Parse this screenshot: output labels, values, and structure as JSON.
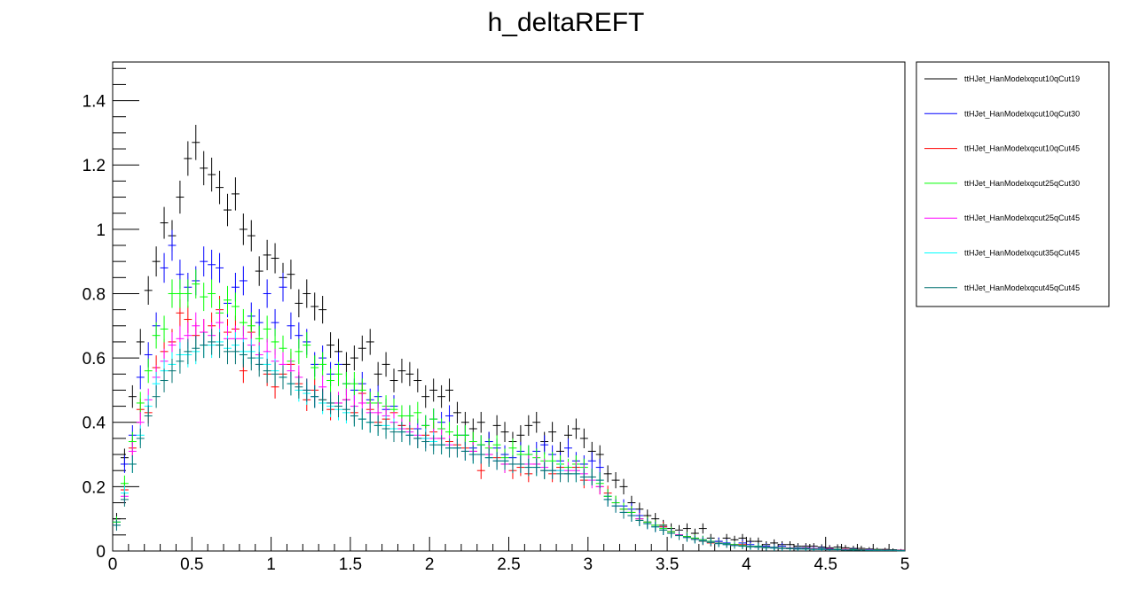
{
  "chart_data": {
    "type": "scatter",
    "title": "h_deltaREFT",
    "xlabel": "",
    "ylabel": "",
    "xlim": [
      0,
      5
    ],
    "ylim": [
      0,
      1.52
    ],
    "x_ticks": [
      0,
      0.5,
      1,
      1.5,
      2,
      2.5,
      3,
      3.5,
      4,
      4.5,
      5
    ],
    "x_tick_labels": [
      "0",
      "0.5",
      "1",
      "1.5",
      "2",
      "2.5",
      "3",
      "3.5",
      "4",
      "4.5",
      "5"
    ],
    "y_ticks": [
      0,
      0.2,
      0.4,
      0.6,
      0.8,
      1,
      1.2,
      1.4
    ],
    "y_tick_labels": [
      "0",
      "0.2",
      "0.4",
      "0.6",
      "0.8",
      "1",
      "1.2",
      "1.4"
    ],
    "bin_width": 0.05,
    "grid": false,
    "legend_position": "right",
    "x": [
      0.025,
      0.075,
      0.125,
      0.175,
      0.225,
      0.275,
      0.325,
      0.375,
      0.425,
      0.475,
      0.525,
      0.575,
      0.625,
      0.675,
      0.725,
      0.775,
      0.825,
      0.875,
      0.925,
      0.975,
      1.025,
      1.075,
      1.125,
      1.175,
      1.225,
      1.275,
      1.325,
      1.375,
      1.425,
      1.475,
      1.525,
      1.575,
      1.625,
      1.675,
      1.725,
      1.775,
      1.825,
      1.875,
      1.925,
      1.975,
      2.025,
      2.075,
      2.125,
      2.175,
      2.225,
      2.275,
      2.325,
      2.375,
      2.425,
      2.475,
      2.525,
      2.575,
      2.625,
      2.675,
      2.725,
      2.775,
      2.825,
      2.875,
      2.925,
      2.975,
      3.025,
      3.075,
      3.125,
      3.175,
      3.225,
      3.275,
      3.325,
      3.375,
      3.425,
      3.475,
      3.525,
      3.575,
      3.625,
      3.675,
      3.725,
      3.775,
      3.825,
      3.875,
      3.925,
      3.975,
      4.025,
      4.075,
      4.125,
      4.175,
      4.225,
      4.275,
      4.325,
      4.375,
      4.425,
      4.475,
      4.525,
      4.575,
      4.625,
      4.675,
      4.725,
      4.775,
      4.825,
      4.875,
      4.925,
      4.975
    ],
    "series": [
      {
        "name": "ttHJet_HanModelxqcut10qCut19",
        "color": "#000000",
        "values": [
          0.1,
          0.29,
          0.48,
          0.65,
          0.81,
          0.9,
          1.02,
          0.98,
          1.1,
          1.22,
          1.27,
          1.19,
          1.17,
          1.13,
          1.06,
          1.11,
          1.0,
          0.98,
          0.87,
          0.92,
          0.91,
          0.85,
          0.86,
          0.77,
          0.8,
          0.76,
          0.75,
          0.64,
          0.62,
          0.58,
          0.6,
          0.63,
          0.65,
          0.55,
          0.58,
          0.53,
          0.56,
          0.55,
          0.53,
          0.48,
          0.5,
          0.48,
          0.5,
          0.43,
          0.4,
          0.38,
          0.4,
          0.34,
          0.39,
          0.37,
          0.34,
          0.36,
          0.39,
          0.4,
          0.34,
          0.37,
          0.31,
          0.36,
          0.38,
          0.35,
          0.31,
          0.3,
          0.24,
          0.22,
          0.2,
          0.15,
          0.13,
          0.11,
          0.1,
          0.08,
          0.07,
          0.065,
          0.07,
          0.055,
          0.07,
          0.04,
          0.03,
          0.04,
          0.035,
          0.04,
          0.03,
          0.03,
          0.02,
          0.025,
          0.02,
          0.02,
          0.015,
          0.015,
          0.015,
          0.012,
          0.01,
          0.012,
          0.01,
          0.008,
          0.008,
          0.006,
          0.005,
          0.005,
          0.004,
          0.003
        ]
      },
      {
        "name": "ttHJet_HanModelxqcut10qCut30",
        "color": "#0000ff",
        "values": [
          0.09,
          0.27,
          0.36,
          0.54,
          0.61,
          0.7,
          0.88,
          0.95,
          0.86,
          0.82,
          0.84,
          0.9,
          0.89,
          0.88,
          0.77,
          0.82,
          0.84,
          0.73,
          0.71,
          0.8,
          0.71,
          0.82,
          0.7,
          0.67,
          0.65,
          0.58,
          0.6,
          0.55,
          0.58,
          0.52,
          0.5,
          0.52,
          0.47,
          0.48,
          0.44,
          0.45,
          0.39,
          0.42,
          0.38,
          0.39,
          0.41,
          0.4,
          0.42,
          0.36,
          0.36,
          0.32,
          0.33,
          0.34,
          0.32,
          0.3,
          0.29,
          0.31,
          0.3,
          0.31,
          0.33,
          0.3,
          0.28,
          0.32,
          0.28,
          0.27,
          0.28,
          0.26,
          0.17,
          0.15,
          0.14,
          0.13,
          0.11,
          0.09,
          0.08,
          0.075,
          0.06,
          0.05,
          0.045,
          0.04,
          0.035,
          0.03,
          0.03,
          0.025,
          0.02,
          0.025,
          0.02,
          0.015,
          0.015,
          0.012,
          0.015,
          0.01,
          0.01,
          0.01,
          0.008,
          0.008,
          0.007,
          0.006,
          0.005,
          0.005,
          0.004,
          0.004,
          0.003,
          0.003,
          0.002,
          0.002
        ]
      },
      {
        "name": "ttHJet_HanModelxqcut10qCut45",
        "color": "#ff0000",
        "values": [
          0.08,
          0.19,
          0.32,
          0.44,
          0.43,
          0.57,
          0.62,
          0.65,
          0.74,
          0.72,
          0.67,
          0.68,
          0.7,
          0.75,
          0.68,
          0.69,
          0.56,
          0.68,
          0.6,
          0.55,
          0.51,
          0.55,
          0.58,
          0.52,
          0.47,
          0.5,
          0.47,
          0.44,
          0.46,
          0.47,
          0.43,
          0.49,
          0.44,
          0.4,
          0.41,
          0.43,
          0.39,
          0.38,
          0.35,
          0.36,
          0.37,
          0.35,
          0.34,
          0.33,
          0.32,
          0.31,
          0.25,
          0.3,
          0.29,
          0.27,
          0.25,
          0.26,
          0.24,
          0.27,
          0.25,
          0.24,
          0.26,
          0.24,
          0.26,
          0.22,
          0.23,
          0.2,
          0.18,
          0.15,
          0.13,
          0.12,
          0.1,
          0.09,
          0.08,
          0.075,
          0.06,
          0.05,
          0.045,
          0.04,
          0.03,
          0.025,
          0.025,
          0.02,
          0.02,
          0.02,
          0.015,
          0.012,
          0.012,
          0.01,
          0.01,
          0.009,
          0.008,
          0.008,
          0.007,
          0.006,
          0.006,
          0.005,
          0.005,
          0.004,
          0.004,
          0.003,
          0.003,
          0.003,
          0.002,
          0.002
        ]
      },
      {
        "name": "ttHJet_HanModelxqcut25qCut30",
        "color": "#00ff00",
        "values": [
          0.09,
          0.21,
          0.34,
          0.46,
          0.56,
          0.67,
          0.69,
          0.8,
          0.8,
          0.8,
          0.83,
          0.79,
          0.8,
          0.74,
          0.78,
          0.76,
          0.71,
          0.7,
          0.66,
          0.69,
          0.65,
          0.63,
          0.59,
          0.62,
          0.64,
          0.57,
          0.58,
          0.53,
          0.55,
          0.52,
          0.52,
          0.5,
          0.46,
          0.46,
          0.45,
          0.44,
          0.42,
          0.42,
          0.43,
          0.39,
          0.41,
          0.38,
          0.37,
          0.36,
          0.36,
          0.34,
          0.33,
          0.32,
          0.33,
          0.29,
          0.32,
          0.3,
          0.3,
          0.29,
          0.28,
          0.28,
          0.27,
          0.26,
          0.27,
          0.26,
          0.23,
          0.21,
          0.17,
          0.15,
          0.13,
          0.12,
          0.1,
          0.09,
          0.08,
          0.07,
          0.06,
          0.05,
          0.045,
          0.04,
          0.035,
          0.03,
          0.025,
          0.022,
          0.02,
          0.018,
          0.015,
          0.014,
          0.012,
          0.011,
          0.01,
          0.009,
          0.008,
          0.007,
          0.006,
          0.006,
          0.005,
          0.005,
          0.004,
          0.004,
          0.003,
          0.003,
          0.003,
          0.002,
          0.002,
          0.002
        ]
      },
      {
        "name": "ttHJet_HanModelxqcut25qCut45",
        "color": "#ff00ff",
        "values": [
          0.08,
          0.17,
          0.31,
          0.4,
          0.47,
          0.54,
          0.59,
          0.64,
          0.66,
          0.67,
          0.7,
          0.68,
          0.67,
          0.71,
          0.66,
          0.66,
          0.66,
          0.64,
          0.61,
          0.62,
          0.59,
          0.58,
          0.56,
          0.54,
          0.5,
          0.48,
          0.51,
          0.46,
          0.46,
          0.47,
          0.45,
          0.46,
          0.43,
          0.43,
          0.42,
          0.4,
          0.38,
          0.37,
          0.36,
          0.35,
          0.35,
          0.35,
          0.33,
          0.32,
          0.31,
          0.31,
          0.3,
          0.3,
          0.28,
          0.27,
          0.27,
          0.27,
          0.27,
          0.27,
          0.26,
          0.25,
          0.25,
          0.25,
          0.25,
          0.24,
          0.22,
          0.2,
          0.16,
          0.14,
          0.12,
          0.11,
          0.1,
          0.085,
          0.075,
          0.065,
          0.055,
          0.05,
          0.042,
          0.037,
          0.032,
          0.028,
          0.024,
          0.02,
          0.018,
          0.016,
          0.014,
          0.012,
          0.011,
          0.01,
          0.009,
          0.008,
          0.007,
          0.006,
          0.006,
          0.005,
          0.005,
          0.004,
          0.004,
          0.003,
          0.003,
          0.003,
          0.002,
          0.002,
          0.002,
          0.002
        ]
      },
      {
        "name": "ttHJet_HanModelxqcut35qCut45",
        "color": "#00ffff",
        "values": [
          0.08,
          0.18,
          0.27,
          0.36,
          0.45,
          0.52,
          0.56,
          0.58,
          0.61,
          0.61,
          0.62,
          0.64,
          0.64,
          0.65,
          0.63,
          0.64,
          0.62,
          0.62,
          0.6,
          0.58,
          0.56,
          0.54,
          0.52,
          0.5,
          0.49,
          0.48,
          0.46,
          0.45,
          0.44,
          0.43,
          0.42,
          0.41,
          0.4,
          0.39,
          0.39,
          0.38,
          0.37,
          0.36,
          0.35,
          0.35,
          0.34,
          0.33,
          0.32,
          0.32,
          0.31,
          0.3,
          0.3,
          0.29,
          0.28,
          0.28,
          0.27,
          0.27,
          0.26,
          0.26,
          0.25,
          0.25,
          0.25,
          0.24,
          0.24,
          0.23,
          0.23,
          0.22,
          0.16,
          0.14,
          0.12,
          0.11,
          0.095,
          0.085,
          0.075,
          0.065,
          0.055,
          0.048,
          0.042,
          0.036,
          0.031,
          0.027,
          0.023,
          0.02,
          0.017,
          0.015,
          0.013,
          0.012,
          0.01,
          0.009,
          0.008,
          0.007,
          0.006,
          0.006,
          0.005,
          0.005,
          0.004,
          0.004,
          0.003,
          0.003,
          0.003,
          0.002,
          0.002,
          0.002,
          0.002,
          0.001
        ]
      },
      {
        "name": "ttHJet_HanModelxqcut45qCut45",
        "color": "#007070",
        "values": [
          0.08,
          0.16,
          0.27,
          0.35,
          0.42,
          0.48,
          0.53,
          0.56,
          0.59,
          0.62,
          0.63,
          0.64,
          0.65,
          0.64,
          0.62,
          0.62,
          0.61,
          0.6,
          0.58,
          0.56,
          0.55,
          0.54,
          0.52,
          0.51,
          0.5,
          0.48,
          0.47,
          0.46,
          0.45,
          0.44,
          0.42,
          0.41,
          0.4,
          0.39,
          0.38,
          0.37,
          0.37,
          0.36,
          0.35,
          0.34,
          0.33,
          0.33,
          0.32,
          0.32,
          0.31,
          0.3,
          0.3,
          0.29,
          0.28,
          0.28,
          0.27,
          0.27,
          0.26,
          0.26,
          0.25,
          0.25,
          0.24,
          0.24,
          0.24,
          0.23,
          0.23,
          0.22,
          0.16,
          0.14,
          0.12,
          0.11,
          0.095,
          0.085,
          0.075,
          0.065,
          0.055,
          0.048,
          0.042,
          0.036,
          0.031,
          0.027,
          0.023,
          0.02,
          0.017,
          0.015,
          0.013,
          0.012,
          0.01,
          0.009,
          0.008,
          0.007,
          0.006,
          0.006,
          0.005,
          0.005,
          0.004,
          0.004,
          0.003,
          0.003,
          0.003,
          0.002,
          0.002,
          0.002,
          0.002,
          0.001
        ]
      }
    ]
  }
}
